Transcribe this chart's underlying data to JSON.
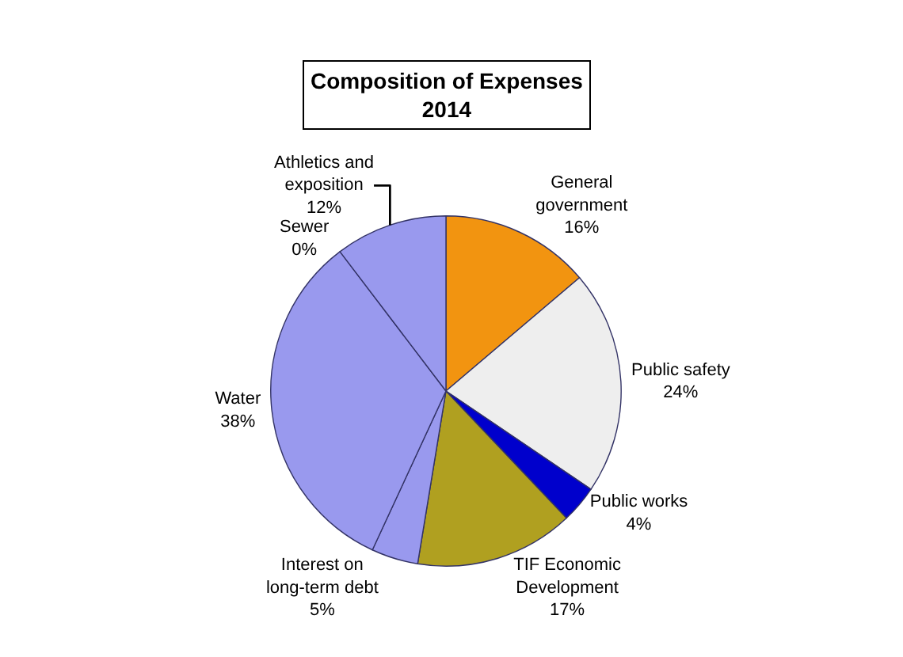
{
  "chart_data": {
    "type": "pie",
    "title": "Composition of Expenses\n2014",
    "categories": [
      "General government",
      "Public safety",
      "Public works",
      "TIF Economic Development",
      "Interest on long-term debt",
      "Water",
      "Sewer",
      "Athletics and exposition"
    ],
    "values": [
      16,
      24,
      4,
      17,
      5,
      38,
      0,
      12
    ],
    "value_labels": [
      "16%",
      "24%",
      "4%",
      "17%",
      "5%",
      "38%",
      "0%",
      "12%"
    ],
    "colors": [
      "#f29410",
      "#eeeeee",
      "#0000cc",
      "#b0a020",
      "#9999ee",
      "#9999ee",
      "#9999ee",
      "#9999ee"
    ],
    "legend": false
  }
}
